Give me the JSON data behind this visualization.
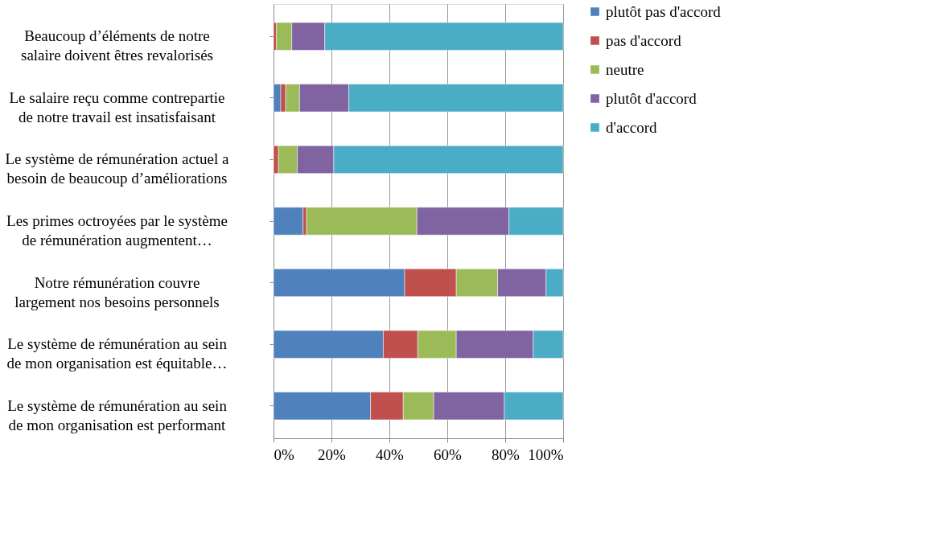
{
  "chart_data": {
    "type": "bar",
    "orientation": "horizontal",
    "stacked": true,
    "categories": [
      "Beaucoup d’éléments de notre\nsalaire doivent êtres revalorisés",
      "Le salaire reçu comme contrepartie\nde notre travail est insatisfaisant",
      "Le système de rémunération actuel a\nbesoin de beaucoup d’améliorations",
      "Les primes octroyées par le système\nde rémunération augmentent…",
      "Notre rémunération couvre\nlargement nos besoins personnels",
      "Le système de rémunération au sein\nde mon organisation est équitable…",
      "Le système de rémunération au sein\nde mon organisation est performant"
    ],
    "series": [
      {
        "name": "plutôt pas d'accord",
        "color": "#4f81bd",
        "values": [
          0,
          2.5,
          0,
          10.2,
          45.3,
          37.9,
          33.5
        ]
      },
      {
        "name": "pas d'accord",
        "color": "#c0504d",
        "values": [
          1,
          1.7,
          1.7,
          1.2,
          17.8,
          11.9,
          11.3
        ]
      },
      {
        "name": "neutre",
        "color": "#9bbb59",
        "values": [
          5.3,
          4.8,
          6.5,
          38.1,
          14.3,
          13.3,
          10.5
        ]
      },
      {
        "name": "plutôt d'accord",
        "color": "#8064a2",
        "values": [
          11.4,
          17,
          12.6,
          31.8,
          16.7,
          26.6,
          24.4
        ]
      },
      {
        "name": "d'accord",
        "color": "#4bacc6",
        "values": [
          82.3,
          74,
          79.2,
          18.7,
          5.9,
          10.3,
          20.3
        ]
      }
    ],
    "xlim": [
      0,
      100
    ],
    "xticks": [
      {
        "value": 0,
        "label": "0%"
      },
      {
        "value": 20,
        "label": "20%"
      },
      {
        "value": 40,
        "label": "40%"
      },
      {
        "value": 60,
        "label": "60%"
      },
      {
        "value": 80,
        "label": "80%"
      },
      {
        "value": 100,
        "label": "100%"
      }
    ],
    "grid": "x",
    "legend": "right"
  }
}
